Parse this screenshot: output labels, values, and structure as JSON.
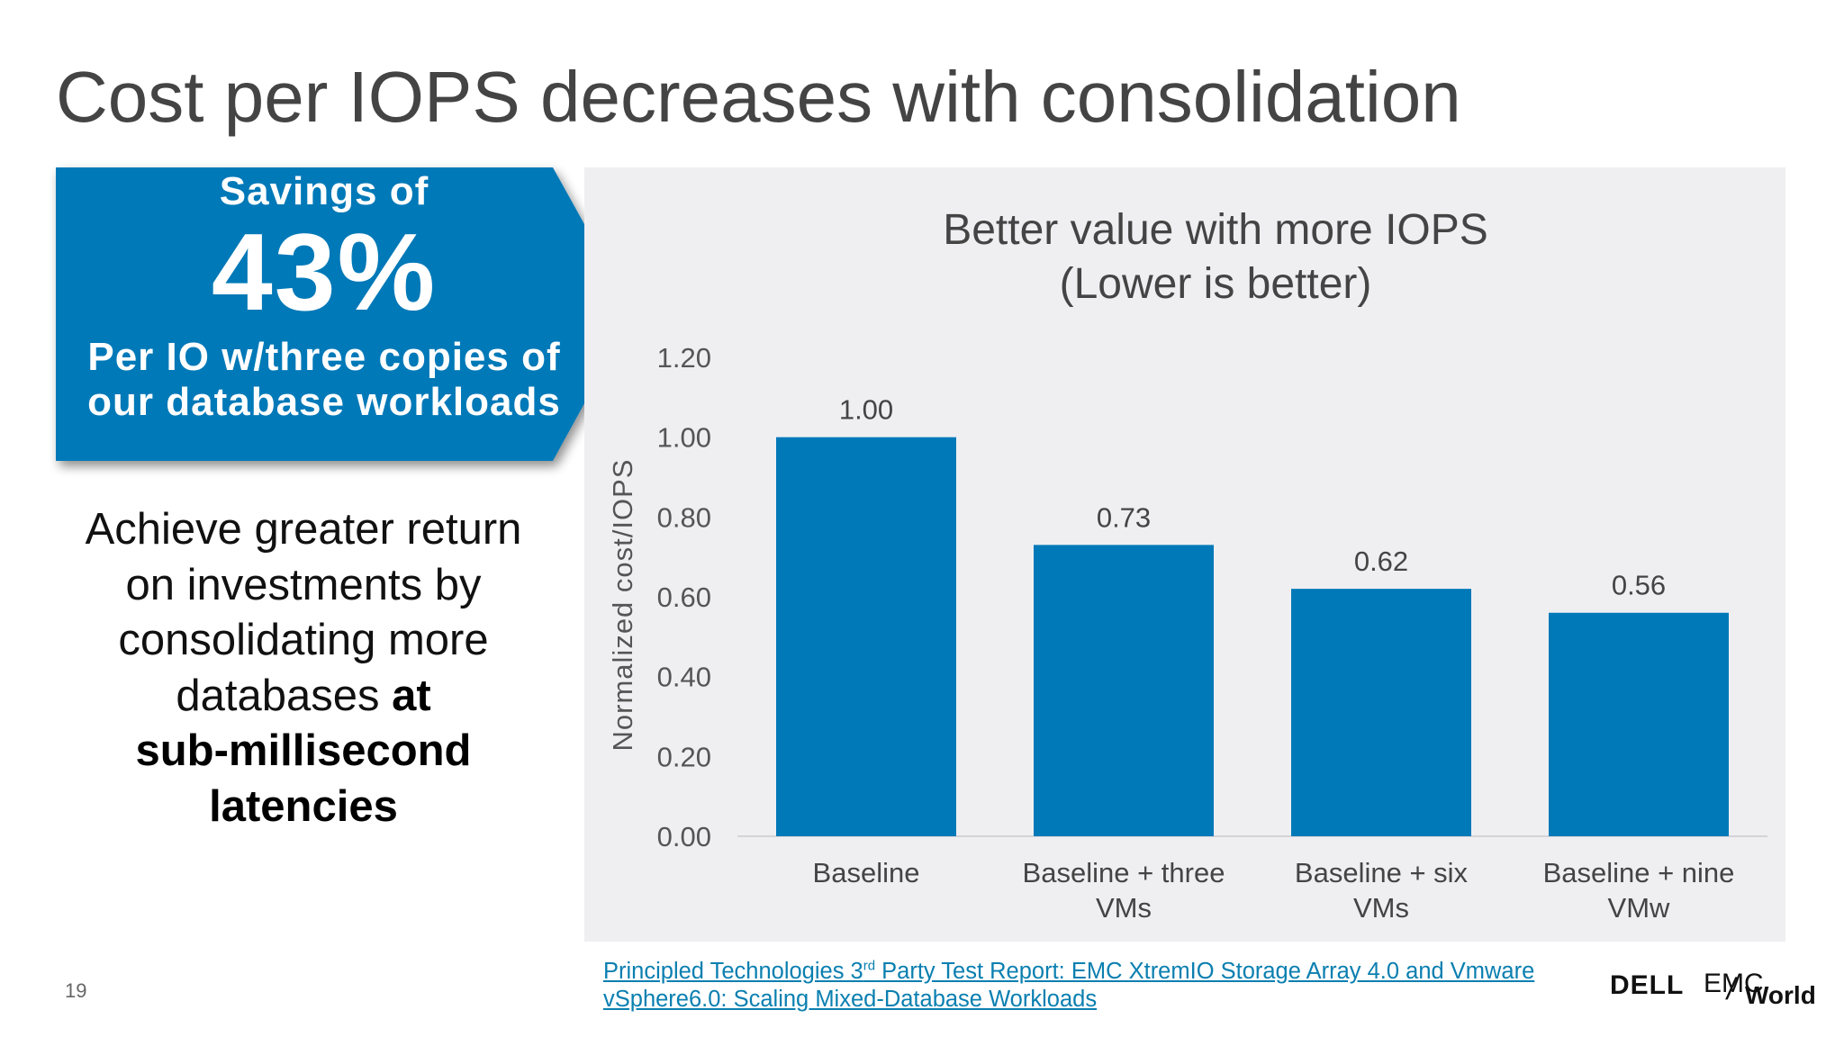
{
  "slide": {
    "title": "Cost per IOPS decreases with consolidation",
    "page_number": "19"
  },
  "callout": {
    "line1": "Savings of",
    "big": "43%",
    "line3a": "Per IO w/three copies of",
    "line3b": "our database workloads",
    "color": "#0079b8"
  },
  "body": {
    "line1": "Achieve greater return",
    "line2": "on investments by",
    "line3": "consolidating more",
    "line4_normal": "databases ",
    "line4_bold": "at",
    "line5": "sub-millisecond",
    "line6": "latencies"
  },
  "chart_data": {
    "type": "bar",
    "title": "Better value with more IOPS",
    "subtitle": "(Lower is better)",
    "xlabel": "",
    "ylabel": "Normalized cost/IOPS",
    "categories": [
      [
        "Baseline"
      ],
      [
        "Baseline + three",
        "VMs"
      ],
      [
        "Baseline + six",
        "VMs"
      ],
      [
        "Baseline + nine",
        "VMw"
      ]
    ],
    "values": [
      1.0,
      0.73,
      0.62,
      0.56
    ],
    "value_labels": [
      "1.00",
      "0.73",
      "0.62",
      "0.56"
    ],
    "ylim": [
      0,
      1.2
    ],
    "yticks": [
      "0.00",
      "0.20",
      "0.40",
      "0.60",
      "0.80",
      "1.00",
      "1.20"
    ],
    "grid": false,
    "legend": "none",
    "bar_color": "#0079b8",
    "background": "#efeff2"
  },
  "source": {
    "part1": "Principled Technologies 3",
    "sup": "rd",
    "part2": " Party Test Report: EMC XtremIO Storage Array 4.0 and Vmware vSphere6.0: Scaling Mixed-Database Workloads"
  },
  "logo": {
    "dell": "DELL",
    "emc": "EMC",
    "world": "World"
  }
}
